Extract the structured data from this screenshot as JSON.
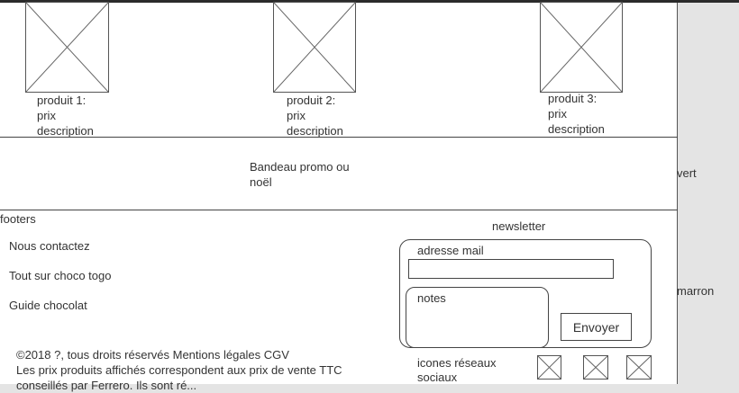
{
  "products": [
    {
      "name": "produit 1:",
      "price": "prix",
      "description": "description"
    },
    {
      "name": "produit 2:",
      "price": "prix",
      "description": "description"
    },
    {
      "name": "produit 3:",
      "price": "prix",
      "description": "description"
    }
  ],
  "banner": {
    "line1": "Bandeau promo ou",
    "line2": "noël"
  },
  "side_labels": {
    "green": "vert",
    "brown": "marron"
  },
  "footer": {
    "title": "footers",
    "links": [
      "Nous contactez",
      "Tout sur choco togo",
      "Guide chocolat"
    ],
    "copyright_line1": "©2018 ?, tous droits réservés Mentions légales CGV",
    "copyright_line2": "Les prix produits affichés correspondent aux prix de vente TTC",
    "copyright_line3": "conseillés par Ferrero. Ils sont ré... "
  },
  "newsletter": {
    "title": "newsletter",
    "email_label": "adresse mail",
    "notes_label": "notes",
    "send_label": "Envoyer"
  },
  "social": {
    "label_line1": "icones réseaux",
    "label_line2": "sociaux"
  }
}
